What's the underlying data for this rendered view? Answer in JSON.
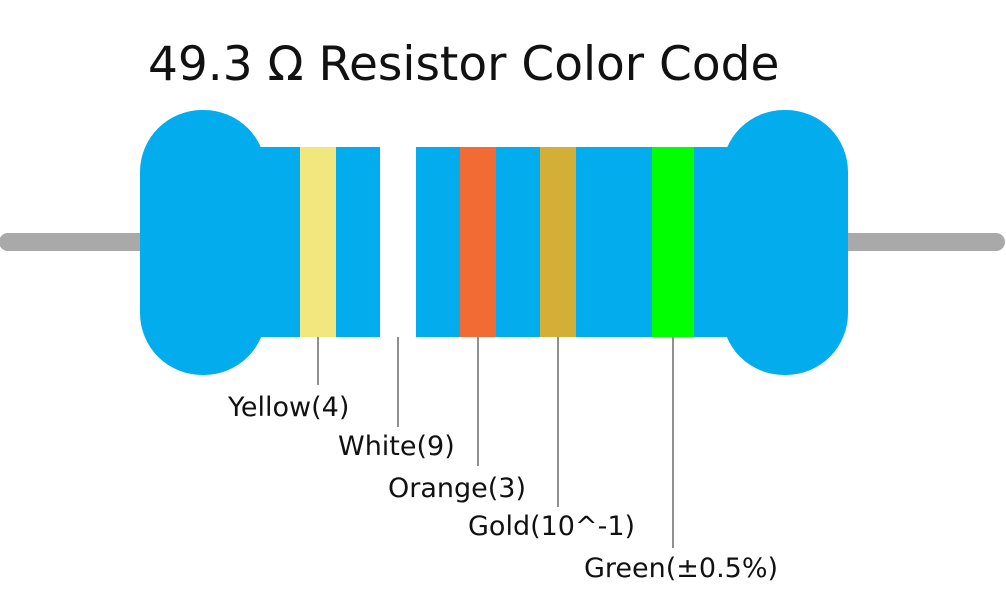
{
  "header": {
    "title": "49.3 Ω Resistor Color Code"
  },
  "bands": [
    {
      "label": "Yellow(4)",
      "color": "#f2e67f"
    },
    {
      "label": "White(9)",
      "color": "#ffffff"
    },
    {
      "label": "Orange(3)",
      "color": "#f26b35"
    },
    {
      "label": "Gold(10^-1)",
      "color": "#d4af37"
    },
    {
      "label": "Green(±0.5%)",
      "color": "#00ff00"
    }
  ]
}
